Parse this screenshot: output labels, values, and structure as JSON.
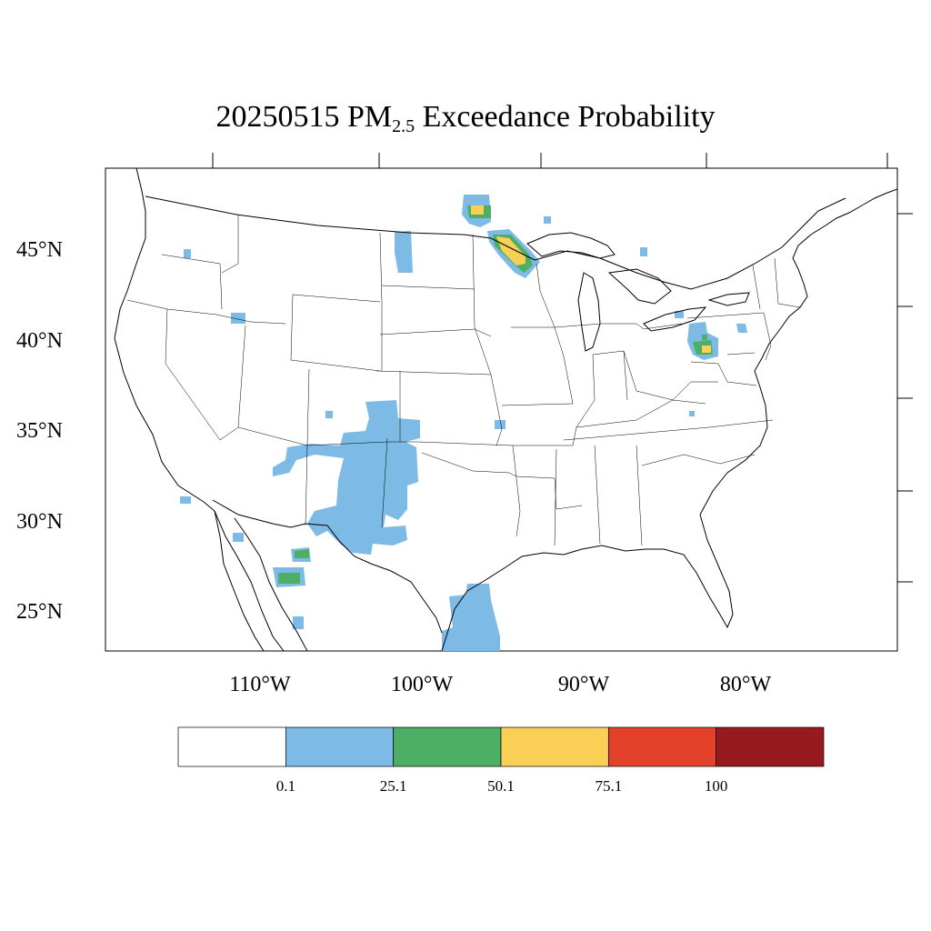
{
  "title": {
    "main_before": "20250515 PM",
    "subscript": "2.5",
    "main_after": " Exceedance Probability"
  },
  "map": {
    "lat_ticks": [
      "45°N",
      "40°N",
      "35°N",
      "30°N",
      "25°N"
    ],
    "lon_ticks": [
      "110°W",
      "100°W",
      "90°W",
      "80°W"
    ]
  },
  "colorbar": {
    "colors": [
      "#ffffff",
      "#7dbae5",
      "#4caf65",
      "#f9cf55",
      "#e4412a",
      "#961a1e"
    ],
    "labels": [
      "0.1",
      "25.1",
      "50.1",
      "75.1",
      "100"
    ]
  },
  "colors": {
    "low": "#7dbae5",
    "mid": "#4caf65",
    "high": "#f9cf55",
    "border": "#000000"
  }
}
